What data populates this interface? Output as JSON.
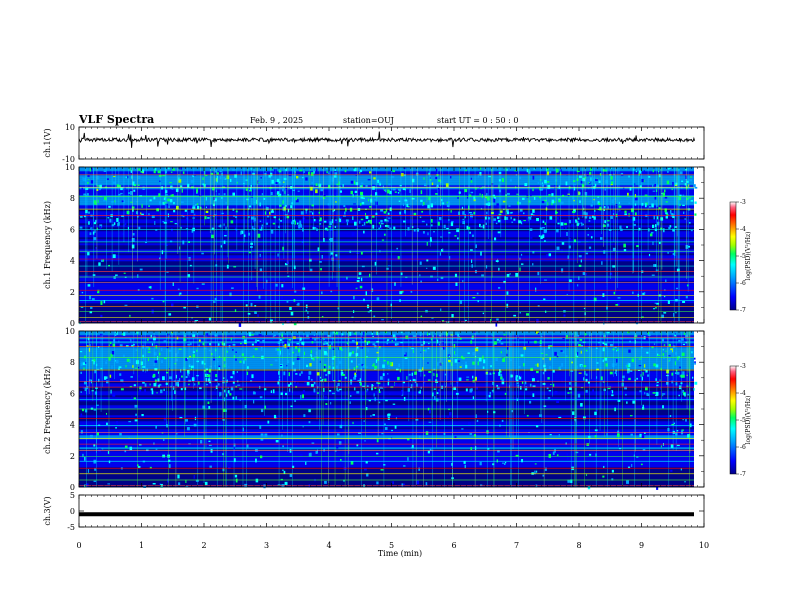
{
  "header": {
    "title": "VLF Spectra",
    "date": "Feb. 9 , 2025",
    "station": "station=OUJ",
    "start_time": "start UT = 0 : 50 : 0"
  },
  "chart_data": [
    {
      "type": "line",
      "name": "ch1-waveform",
      "ylabel": "ch.1(V)",
      "ylim": [
        -10,
        10
      ],
      "yticks": [
        "10",
        "-10"
      ],
      "description_level_approx": 2,
      "xlim": [
        0,
        10
      ]
    },
    {
      "type": "heatmap",
      "name": "ch1-spectrogram",
      "ylabel": "ch.1 Frequency (kHz)",
      "ylim": [
        0,
        10
      ],
      "yticks": [
        "0",
        "2",
        "4",
        "6",
        "8",
        "10"
      ],
      "xlim": [
        0,
        10
      ],
      "colorbar": {
        "label": "log(PSD)(V²/Hz)",
        "ticks": [
          "-3",
          "-4",
          "-5",
          "-6",
          "-7"
        ],
        "range": [
          -7,
          -3
        ]
      }
    },
    {
      "type": "heatmap",
      "name": "ch2-spectrogram",
      "ylabel": "ch.2 Frequency (kHz)",
      "ylim": [
        0,
        10
      ],
      "yticks": [
        "0",
        "2",
        "4",
        "6",
        "8",
        "10"
      ],
      "xlim": [
        0,
        10
      ],
      "colorbar": {
        "label": "log(PSD)(V²/Hz)",
        "ticks": [
          "-3",
          "-4",
          "-5",
          "-6",
          "-7"
        ],
        "range": [
          -7,
          -3
        ]
      }
    },
    {
      "type": "line",
      "name": "ch3-waveform",
      "ylabel": "ch.3(V)",
      "ylim": [
        -5,
        5
      ],
      "yticks": [
        "5",
        "0",
        "-5"
      ],
      "level": -1,
      "xlim": [
        0,
        10
      ]
    }
  ],
  "xaxis": {
    "label": "Time (min)",
    "ticks": [
      "0",
      "1",
      "2",
      "3",
      "4",
      "5",
      "6",
      "7",
      "8",
      "9",
      "10"
    ]
  },
  "colors": {
    "colormap": [
      "#00008a",
      "#0000ff",
      "#00a0ff",
      "#00ffff",
      "#00ff60",
      "#a0ff00",
      "#ffff00",
      "#ff8000",
      "#ff0000",
      "#ff3c5a",
      "#ffffff"
    ]
  }
}
